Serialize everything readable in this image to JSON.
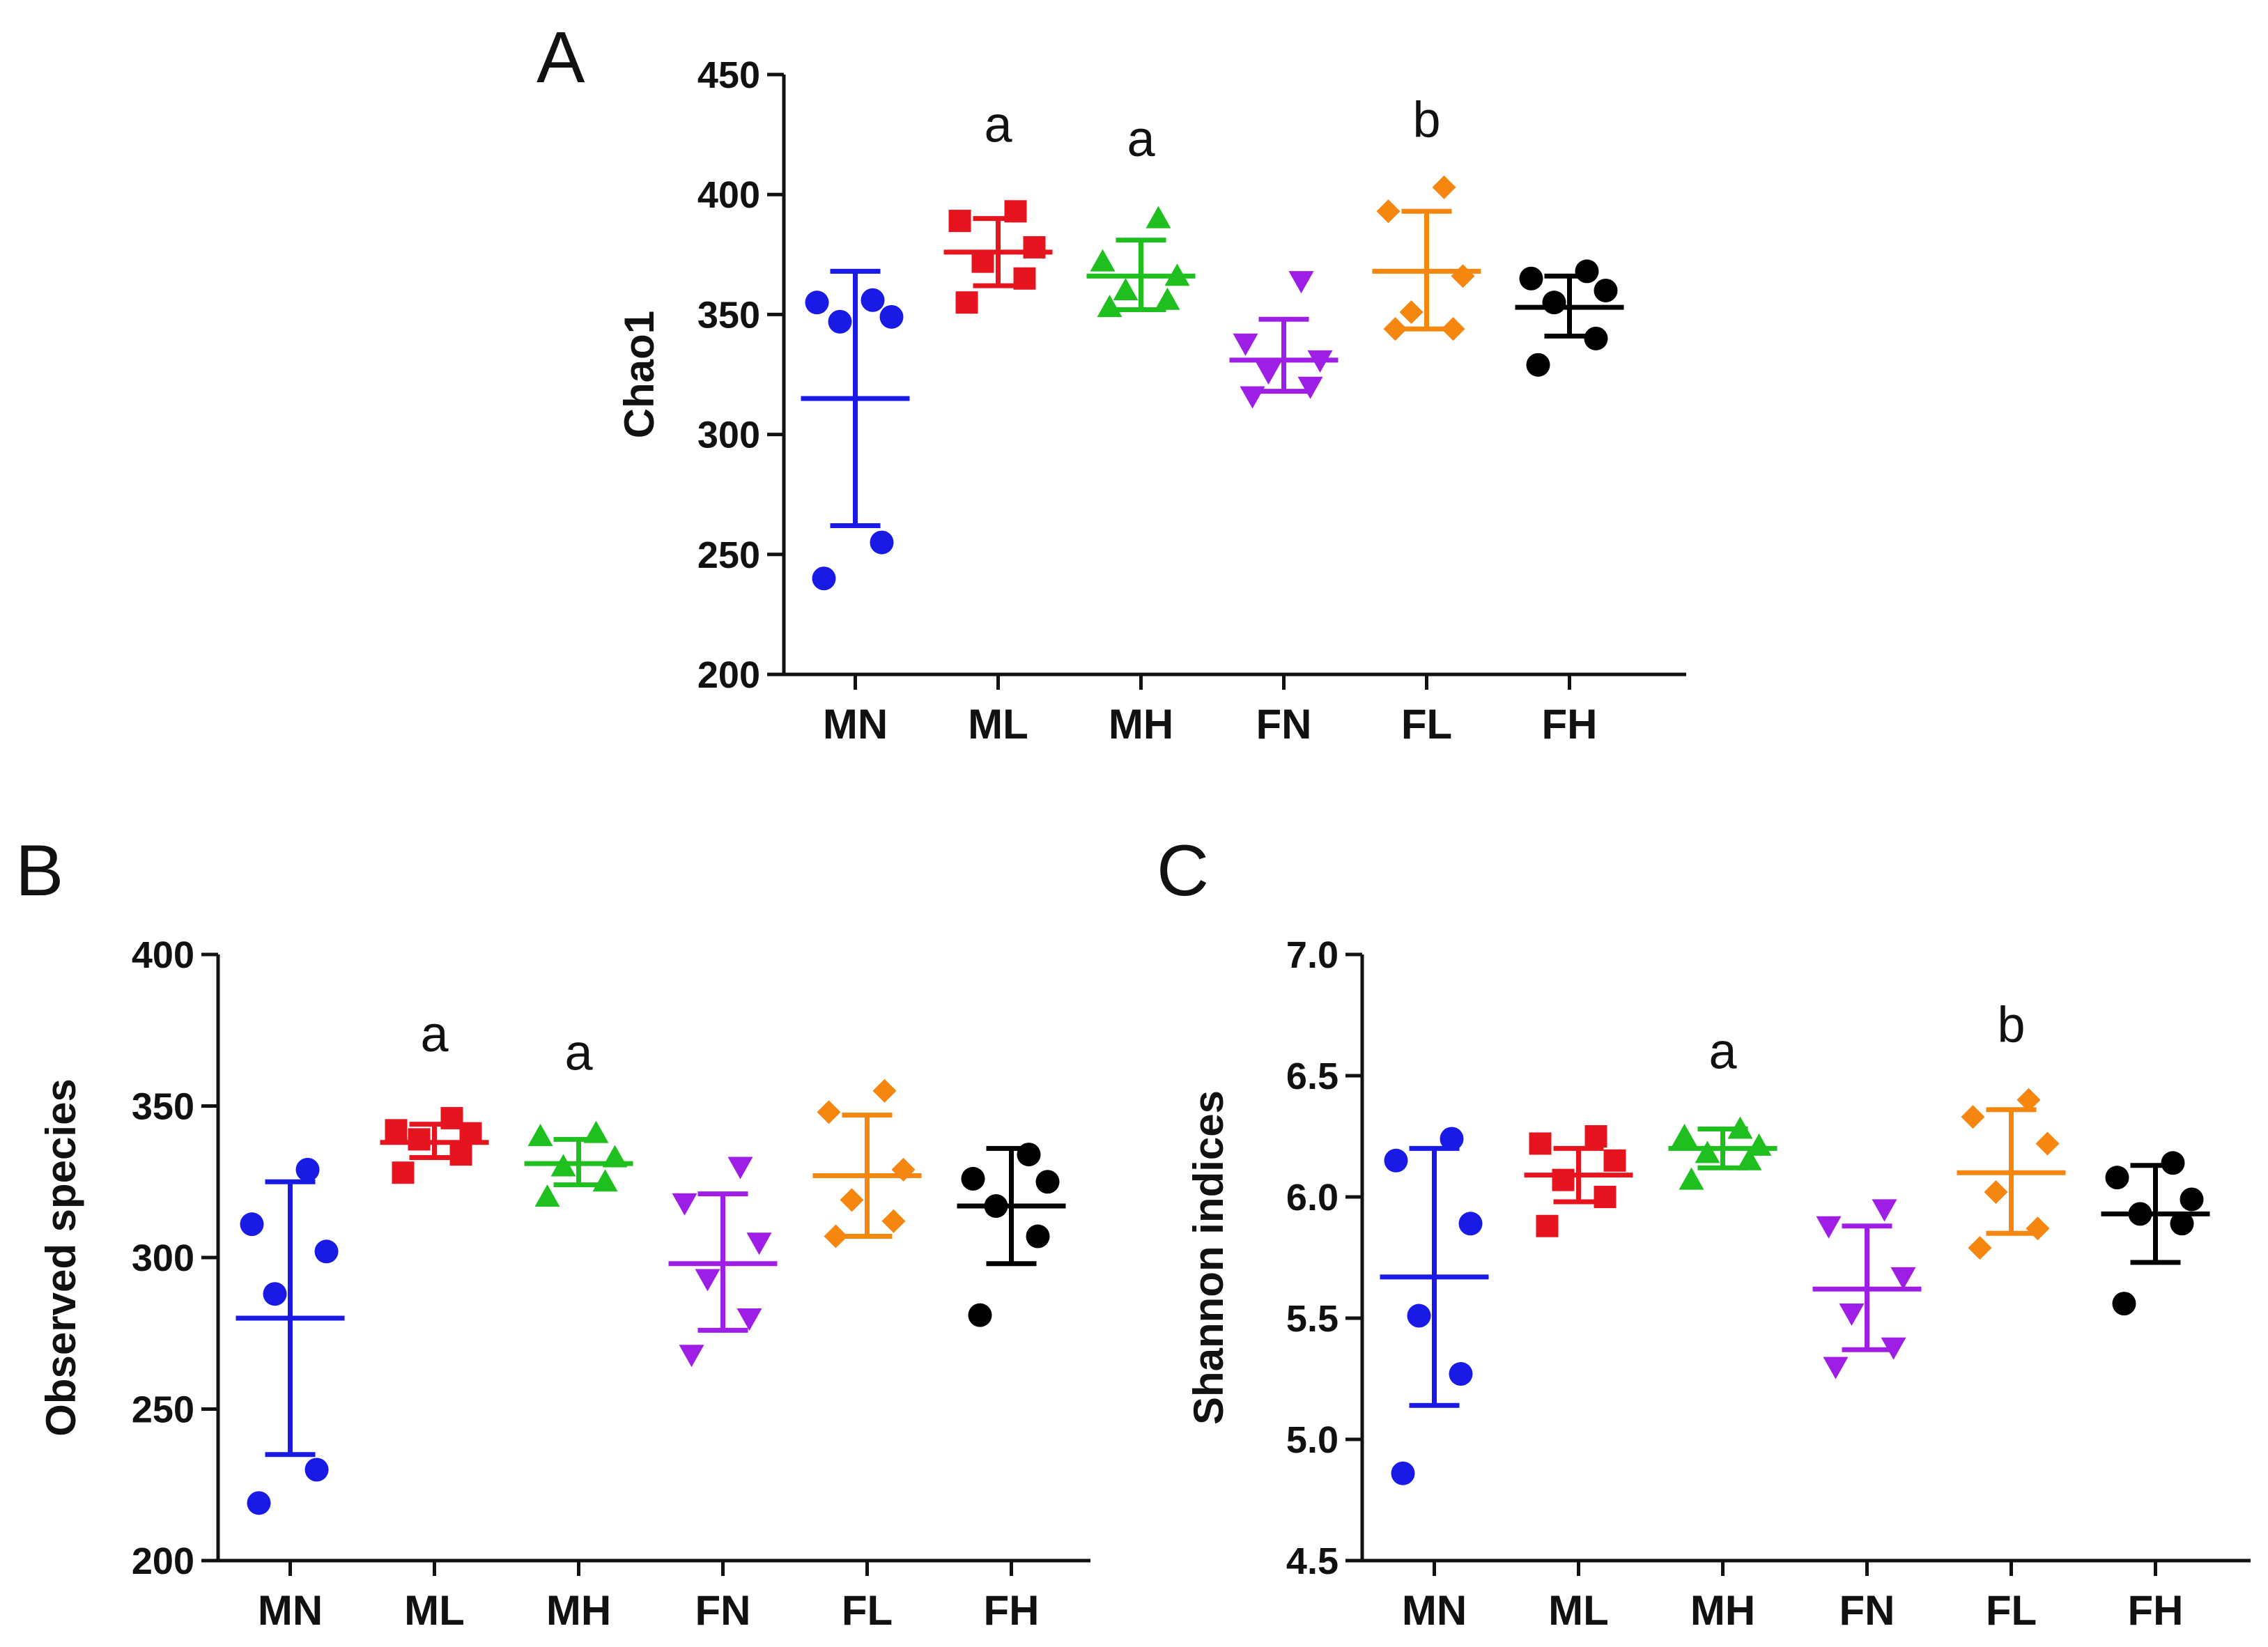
{
  "chart_data": [
    {
      "type": "scatter",
      "panel": "A",
      "ylabel": "Chao1",
      "xlabel": "",
      "ylim": [
        200,
        450
      ],
      "yticks": [
        200,
        250,
        300,
        350,
        400,
        450
      ],
      "categories": [
        "MN",
        "ML",
        "MH",
        "FN",
        "FL",
        "FH"
      ],
      "series": [
        {
          "name": "MN",
          "color": "#1a1ae6",
          "marker": "circle",
          "points": [
            240,
            255,
            347,
            349,
            355,
            356
          ],
          "mean": 315,
          "sd_low": 262,
          "sd_high": 368
        },
        {
          "name": "ML",
          "color": "#e6141e",
          "marker": "square",
          "points": [
            355,
            365,
            372,
            378,
            389,
            393
          ],
          "mean": 376,
          "sd_low": 362,
          "sd_high": 390
        },
        {
          "name": "MH",
          "color": "#1fbf1f",
          "marker": "triangle-up",
          "points": [
            353,
            356,
            360,
            366,
            372,
            390
          ],
          "mean": 366,
          "sd_low": 352,
          "sd_high": 381
        },
        {
          "name": "FN",
          "color": "#9e1ee6",
          "marker": "triangle-down",
          "points": [
            316,
            320,
            326,
            331,
            338,
            364
          ],
          "mean": 331,
          "sd_low": 318,
          "sd_high": 348
        },
        {
          "name": "FL",
          "color": "#f5860f",
          "marker": "diamond",
          "points": [
            344,
            344,
            351,
            366,
            393,
            403
          ],
          "mean": 368,
          "sd_low": 344,
          "sd_high": 393
        },
        {
          "name": "FH",
          "color": "#000000",
          "marker": "circle",
          "points": [
            329,
            340,
            355,
            360,
            365,
            368
          ],
          "mean": 353,
          "sd_low": 341,
          "sd_high": 366
        }
      ],
      "annotations": [
        {
          "category": "ML",
          "text": "a",
          "value": 422
        },
        {
          "category": "MH",
          "text": "a",
          "value": 416
        },
        {
          "category": "FL",
          "text": "b",
          "value": 424
        }
      ]
    },
    {
      "type": "scatter",
      "panel": "B",
      "ylabel": "Observed species",
      "xlabel": "",
      "ylim": [
        200,
        400
      ],
      "yticks": [
        200,
        250,
        300,
        350,
        400
      ],
      "categories": [
        "MN",
        "ML",
        "MH",
        "FN",
        "FL",
        "FH"
      ],
      "series": [
        {
          "name": "MN",
          "color": "#1a1ae6",
          "marker": "circle",
          "points": [
            219,
            230,
            288,
            302,
            311,
            329
          ],
          "mean": 280,
          "sd_low": 235,
          "sd_high": 325
        },
        {
          "name": "ML",
          "color": "#e6141e",
          "marker": "square",
          "points": [
            328,
            334,
            339,
            341,
            342,
            346
          ],
          "mean": 338,
          "sd_low": 333,
          "sd_high": 344
        },
        {
          "name": "MH",
          "color": "#1fbf1f",
          "marker": "triangle-up",
          "points": [
            320,
            325,
            330,
            333,
            340,
            341
          ],
          "mean": 331,
          "sd_low": 324,
          "sd_high": 339
        },
        {
          "name": "FN",
          "color": "#9e1ee6",
          "marker": "triangle-down",
          "points": [
            268,
            280,
            293,
            305,
            318,
            330
          ],
          "mean": 298,
          "sd_low": 276,
          "sd_high": 321
        },
        {
          "name": "FL",
          "color": "#f5860f",
          "marker": "diamond",
          "points": [
            307,
            312,
            319,
            329,
            348,
            355
          ],
          "mean": 327,
          "sd_low": 307,
          "sd_high": 347
        },
        {
          "name": "FH",
          "color": "#000000",
          "marker": "circle",
          "points": [
            281,
            307,
            317,
            325,
            326,
            334
          ],
          "mean": 317,
          "sd_low": 298,
          "sd_high": 336
        }
      ],
      "annotations": [
        {
          "category": "ML",
          "text": "a",
          "value": 368
        },
        {
          "category": "MH",
          "text": "a",
          "value": 362
        }
      ]
    },
    {
      "type": "scatter",
      "panel": "C",
      "ylabel": "Shannon indices",
      "xlabel": "",
      "ylim": [
        4.5,
        7.0
      ],
      "yticks": [
        "4.5",
        "5.0",
        "5.5",
        "6.0",
        "6.5",
        "7.0"
      ],
      "categories": [
        "MN",
        "ML",
        "MH",
        "FN",
        "FL",
        "FH"
      ],
      "series": [
        {
          "name": "MN",
          "color": "#1a1ae6",
          "marker": "circle",
          "points": [
            4.86,
            5.27,
            5.51,
            5.89,
            6.15,
            6.24
          ],
          "mean": 5.67,
          "sd_low": 5.14,
          "sd_high": 6.2
        },
        {
          "name": "ML",
          "color": "#e6141e",
          "marker": "square",
          "points": [
            5.88,
            6.0,
            6.07,
            6.15,
            6.22,
            6.25
          ],
          "mean": 6.09,
          "sd_low": 5.98,
          "sd_high": 6.2
        },
        {
          "name": "MH",
          "color": "#1fbf1f",
          "marker": "triangle-up",
          "points": [
            6.07,
            6.15,
            6.18,
            6.21,
            6.25,
            6.28
          ],
          "mean": 6.2,
          "sd_low": 6.12,
          "sd_high": 6.28
        },
        {
          "name": "FN",
          "color": "#9e1ee6",
          "marker": "triangle-down",
          "points": [
            5.3,
            5.38,
            5.52,
            5.67,
            5.88,
            5.95
          ],
          "mean": 5.62,
          "sd_low": 5.37,
          "sd_high": 5.88
        },
        {
          "name": "FL",
          "color": "#f5860f",
          "marker": "diamond",
          "points": [
            5.79,
            5.87,
            6.02,
            6.22,
            6.33,
            6.4
          ],
          "mean": 6.1,
          "sd_low": 5.85,
          "sd_high": 6.36
        },
        {
          "name": "FH",
          "color": "#000000",
          "marker": "circle",
          "points": [
            5.56,
            5.89,
            5.93,
            5.99,
            6.08,
            6.14
          ],
          "mean": 5.93,
          "sd_low": 5.73,
          "sd_high": 6.13
        }
      ],
      "annotations": [
        {
          "category": "MH",
          "text": "a",
          "value": 6.53
        },
        {
          "category": "FL",
          "text": "b",
          "value": 6.64
        }
      ]
    }
  ]
}
